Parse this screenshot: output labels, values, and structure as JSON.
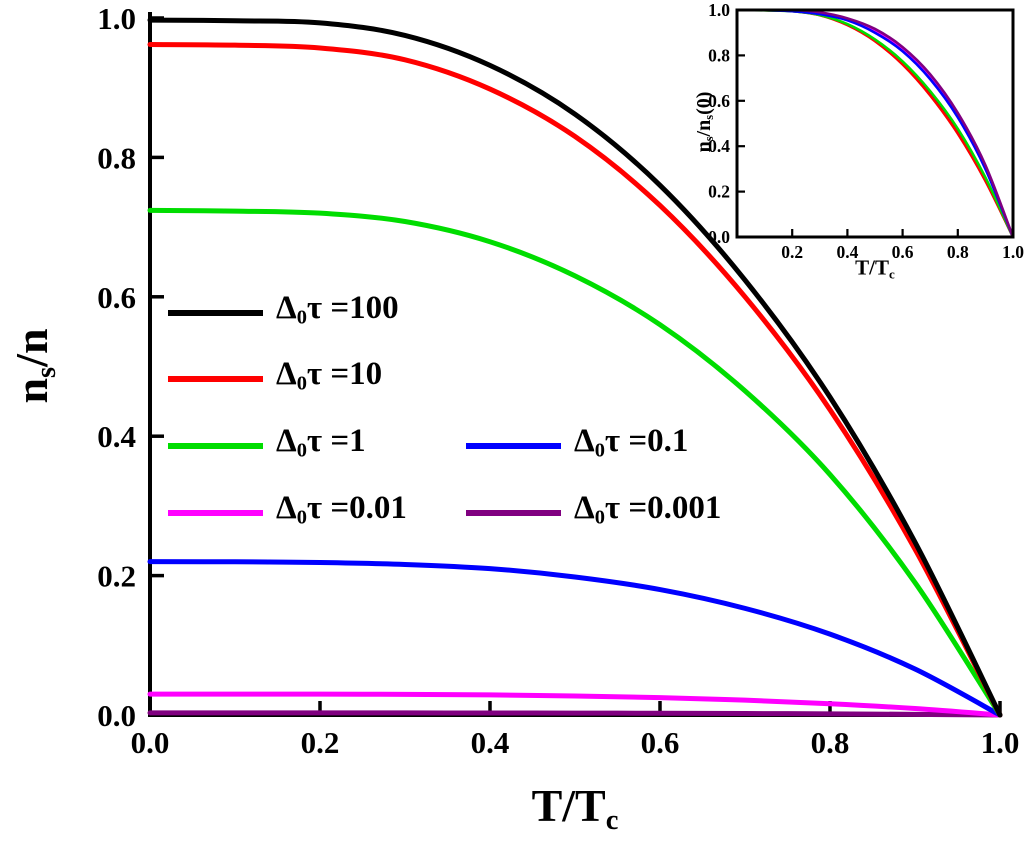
{
  "figure": {
    "background": "#ffffff",
    "axis_color": "#000000"
  },
  "chart_data": {
    "type": "line",
    "main": {
      "xlabel_rich": [
        {
          "t": "T/T"
        },
        {
          "t": "c",
          "sub": true
        }
      ],
      "ylabel_rich": [
        {
          "t": "n"
        },
        {
          "t": "s",
          "sub": true
        },
        {
          "t": "/n"
        }
      ],
      "xlim": [
        0,
        1
      ],
      "ylim": [
        0,
        1
      ],
      "xtick_values": [
        0,
        0.2,
        0.4,
        0.6,
        0.8,
        1.0
      ],
      "xtick_labels": [
        "0.0",
        "0.2",
        "0.4",
        "0.6",
        "0.8",
        "1.0"
      ],
      "ytick_values": [
        0,
        0.2,
        0.4,
        0.6,
        0.8,
        1.0
      ],
      "ytick_labels": [
        "0.0",
        "0.2",
        "0.4",
        "0.6",
        "0.8",
        "1.0"
      ],
      "x": [
        0,
        0.1,
        0.2,
        0.3,
        0.4,
        0.5,
        0.6,
        0.7,
        0.8,
        0.9,
        1.0
      ],
      "series": [
        {
          "name": "Δ0τ =100",
          "label_rich": [
            {
              "t": "Δ"
            },
            {
              "t": "0",
              "sub": true
            },
            {
              "t": "τ =100"
            }
          ],
          "color": "#000000",
          "values": [
            0.997,
            0.996,
            0.993,
            0.975,
            0.932,
            0.862,
            0.76,
            0.624,
            0.456,
            0.248,
            0.0
          ]
        },
        {
          "name": "Δ0τ =10",
          "label_rich": [
            {
              "t": "Δ"
            },
            {
              "t": "0",
              "sub": true
            },
            {
              "t": "τ =10"
            }
          ],
          "color": "#ff0000",
          "values": [
            0.962,
            0.961,
            0.957,
            0.94,
            0.898,
            0.83,
            0.731,
            0.6,
            0.438,
            0.238,
            0.0
          ]
        },
        {
          "name": "Δ0τ =1",
          "label_rich": [
            {
              "t": "Δ"
            },
            {
              "t": "0",
              "sub": true
            },
            {
              "t": "τ =1"
            }
          ],
          "color": "#00dd00",
          "values": [
            0.724,
            0.723,
            0.72,
            0.708,
            0.679,
            0.63,
            0.56,
            0.465,
            0.345,
            0.19,
            0.0
          ]
        },
        {
          "name": "Δ0τ =0.1",
          "label_rich": [
            {
              "t": "Δ"
            },
            {
              "t": "0",
              "sub": true
            },
            {
              "t": "τ =0.1"
            }
          ],
          "color": "#0000ff",
          "values": [
            0.22,
            0.2198,
            0.2188,
            0.216,
            0.21,
            0.198,
            0.18,
            0.153,
            0.116,
            0.066,
            0.0
          ]
        },
        {
          "name": "Δ0τ =0.01",
          "label_rich": [
            {
              "t": "Δ"
            },
            {
              "t": "0",
              "sub": true
            },
            {
              "t": "τ =0.01"
            }
          ],
          "color": "#ff00ff",
          "values": [
            0.03,
            0.03,
            0.0299,
            0.0296,
            0.0288,
            0.0273,
            0.0249,
            0.0213,
            0.0162,
            0.0093,
            0.0
          ]
        },
        {
          "name": "Δ0τ =0.001",
          "label_rich": [
            {
              "t": "Δ"
            },
            {
              "t": "0",
              "sub": true
            },
            {
              "t": "τ =0.001"
            }
          ],
          "color": "#800080",
          "values": [
            0.003,
            0.003,
            0.003,
            0.00297,
            0.00289,
            0.00275,
            0.00251,
            0.00215,
            0.00164,
            0.00095,
            0.0
          ]
        }
      ]
    },
    "inset": {
      "normalized_from_main": true,
      "xlabel_rich": [
        {
          "t": "T/T"
        },
        {
          "t": "c",
          "sub": true
        }
      ],
      "ylabel_rich": [
        {
          "t": "n"
        },
        {
          "t": "s",
          "sub": true
        },
        {
          "t": "/n"
        },
        {
          "t": "s",
          "sub": true
        },
        {
          "t": "(0)"
        }
      ],
      "xlim": [
        0,
        1
      ],
      "ylim": [
        0,
        1
      ],
      "xtick_values": [
        0.2,
        0.4,
        0.6,
        0.8,
        1.0
      ],
      "xtick_labels": [
        "0.2",
        "0.4",
        "0.6",
        "0.8",
        "1.0"
      ],
      "ytick_values": [
        0,
        0.2,
        0.4,
        0.6,
        0.8,
        1.0
      ],
      "ytick_labels": [
        "0.0",
        "0.2",
        "0.4",
        "0.6",
        "0.8",
        "1.0"
      ]
    }
  },
  "legend": {
    "items": [
      {
        "series_index": 0,
        "col": 0,
        "row": 0
      },
      {
        "series_index": 1,
        "col": 0,
        "row": 1
      },
      {
        "series_index": 2,
        "col": 0,
        "row": 2
      },
      {
        "series_index": 3,
        "col": 1,
        "row": 2
      },
      {
        "series_index": 4,
        "col": 0,
        "row": 3
      },
      {
        "series_index": 5,
        "col": 1,
        "row": 3
      }
    ]
  }
}
